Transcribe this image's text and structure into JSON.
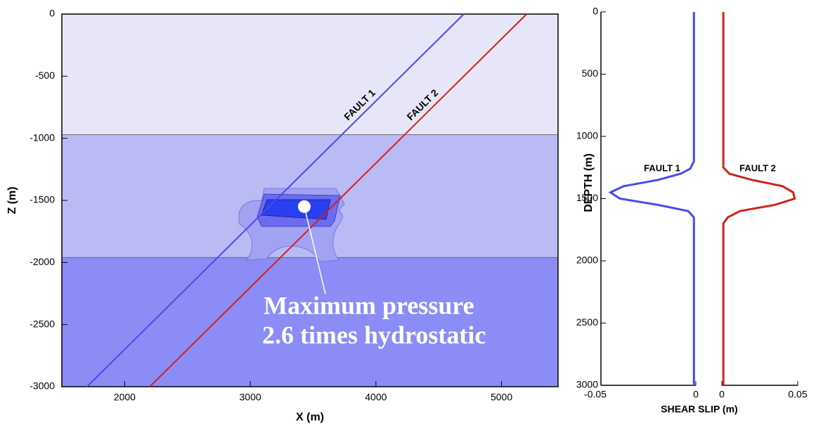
{
  "chart_data": [
    {
      "type": "section",
      "x_label": "X (m)",
      "y_label": "Z (m)",
      "xlim": [
        1500,
        5450
      ],
      "ylim": [
        -3000,
        0
      ],
      "xticks": [
        2000,
        3000,
        4000,
        5000
      ],
      "yticks": [
        0,
        -500,
        -1000,
        -1500,
        -2000,
        -2500,
        -3000
      ],
      "layer_tops": [
        0,
        -970,
        -1960
      ],
      "layer_colors": [
        "#e6e6f8",
        "#babaf5",
        "#8c8cf6"
      ],
      "series": [
        {
          "name": "FAULT 1",
          "color": "#4a4ae8",
          "x": [
            1700,
            4700
          ],
          "y": [
            -3000,
            0
          ]
        },
        {
          "name": "FAULT 2",
          "color": "#d0231a",
          "x": [
            2200,
            5200
          ],
          "y": [
            -3000,
            0
          ]
        }
      ],
      "max_pressure_point": {
        "x": 3430,
        "y": -1550
      },
      "annotation": [
        "Maximum pressure",
        "2.6 times hydrostatic"
      ]
    },
    {
      "type": "profile",
      "x_label": "SHEAR SLIP (m)",
      "y_label": "DEPTH (m)",
      "ylim": [
        0,
        3000
      ],
      "yticks": [
        0,
        500,
        1000,
        1500,
        2000,
        2500,
        3000
      ],
      "panels": [
        {
          "xlim": [
            -0.05,
            0
          ],
          "xticks": [
            -0.05,
            0
          ],
          "series": [
            {
              "name": "FAULT 1",
              "color": "#4a4ae8",
              "depth": [
                0,
                600,
                1200,
                1260,
                1300,
                1350,
                1400,
                1450,
                1500,
                1550,
                1600,
                1650,
                2100,
                3000
              ],
              "values": [
                -0.001,
                -0.001,
                -0.001,
                -0.003,
                -0.008,
                -0.02,
                -0.038,
                -0.045,
                -0.04,
                -0.02,
                -0.004,
                -0.001,
                -0.001,
                -0.001
              ]
            }
          ]
        },
        {
          "xlim": [
            0,
            0.05
          ],
          "xticks": [
            0,
            0.05
          ],
          "series": [
            {
              "name": "FAULT 2",
              "color": "#d0231a",
              "depth": [
                0,
                600,
                1250,
                1300,
                1350,
                1400,
                1450,
                1500,
                1550,
                1600,
                1650,
                1700,
                2100,
                3000
              ],
              "values": [
                0.001,
                0.001,
                0.001,
                0.005,
                0.02,
                0.04,
                0.047,
                0.048,
                0.035,
                0.012,
                0.004,
                0.001,
                0.001,
                0.001
              ]
            }
          ]
        }
      ]
    }
  ]
}
